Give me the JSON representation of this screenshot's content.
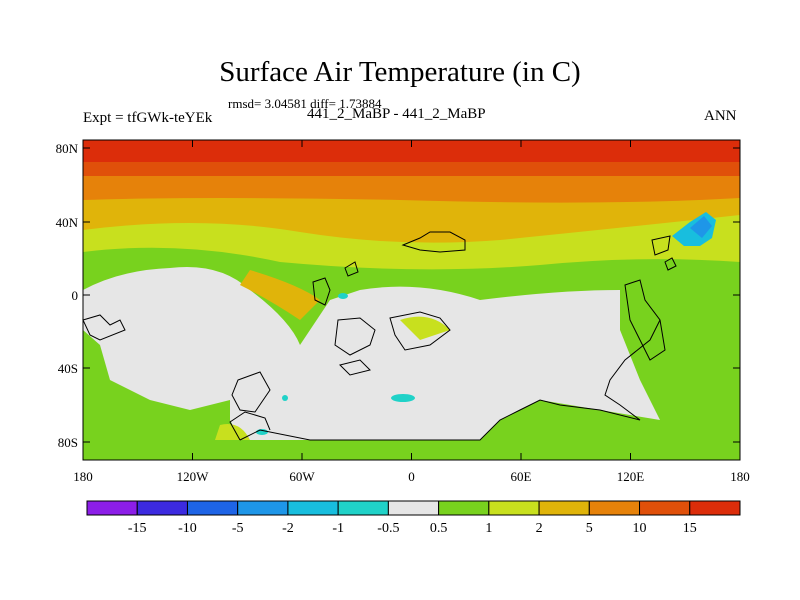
{
  "title": "Surface Air Temperature (in C)",
  "stats": "rmsd= 3.04581 diff= 1.73884",
  "experiment": "Expt = tfGWk-teYEk",
  "case": "441_2_MaBP - 441_2_MaBP",
  "season": "ANN",
  "lat_ticks": [
    "80N",
    "40N",
    "0",
    "40S",
    "80S"
  ],
  "lon_ticks": [
    "180",
    "120W",
    "60W",
    "0",
    "60E",
    "120E",
    "180"
  ],
  "colorbar": {
    "labels": [
      "-15",
      "-10",
      "-5",
      "-2",
      "-1",
      "-0.5",
      "0.5",
      "1",
      "2",
      "5",
      "10",
      "15"
    ],
    "colors": [
      "#8c1ee8",
      "#3c2ae0",
      "#1e64e6",
      "#1e96e8",
      "#18bede",
      "#20d2c8",
      "#e6e6e6",
      "#78d21e",
      "#c8e01e",
      "#e0b40a",
      "#e6820a",
      "#e0500a",
      "#dc2d0a"
    ]
  }
}
